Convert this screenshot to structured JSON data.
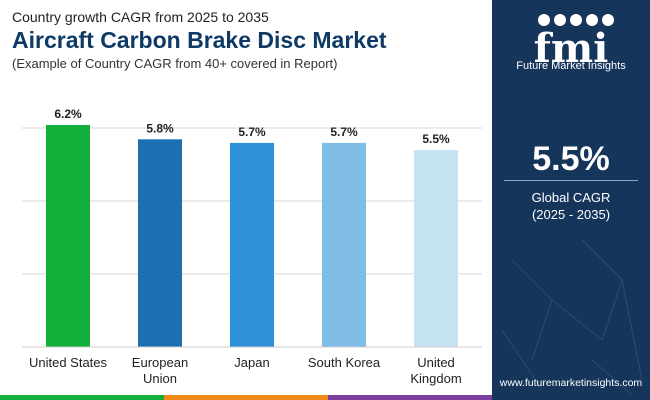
{
  "header": {
    "kicker": "Country growth CAGR from 2025 to 2035",
    "title": "Aircraft Carbon Brake Disc Market",
    "subtitle": "(Example of Country CAGR from 40+ covered in Report)"
  },
  "chart_data": {
    "type": "bar",
    "categories": [
      "United States",
      "European Union",
      "Japan",
      "South Korea",
      "United Kingdom"
    ],
    "category_lines": [
      [
        "United States"
      ],
      [
        "European",
        "Union"
      ],
      [
        "Japan"
      ],
      [
        "South Korea"
      ],
      [
        "United",
        "Kingdom"
      ]
    ],
    "values": [
      6.2,
      5.8,
      5.7,
      5.7,
      5.5
    ],
    "value_labels": [
      "6.2%",
      "5.8%",
      "5.7%",
      "5.7%",
      "5.5%"
    ],
    "colors": [
      "#12b03a",
      "#1c6fb0",
      "#2e90d6",
      "#7fbde6",
      "#c5e2f3"
    ],
    "ylim": [
      0,
      6.2
    ],
    "grid": true,
    "title": "",
    "xlabel": "",
    "ylabel": ""
  },
  "sidebar": {
    "logo_letters": "fmi",
    "logo_text": "Future Market Insights",
    "stat_value": "5.5%",
    "stat_label": "Global CAGR",
    "stat_range": "(2025 - 2035)",
    "website": "www.futuremarketinsights.com"
  },
  "colors": {
    "title": "#0d3b66",
    "sidebar_bg": "#16355a",
    "bottom_bar": [
      "#12b03a",
      "#f28a1a",
      "#7b3fa0"
    ]
  }
}
